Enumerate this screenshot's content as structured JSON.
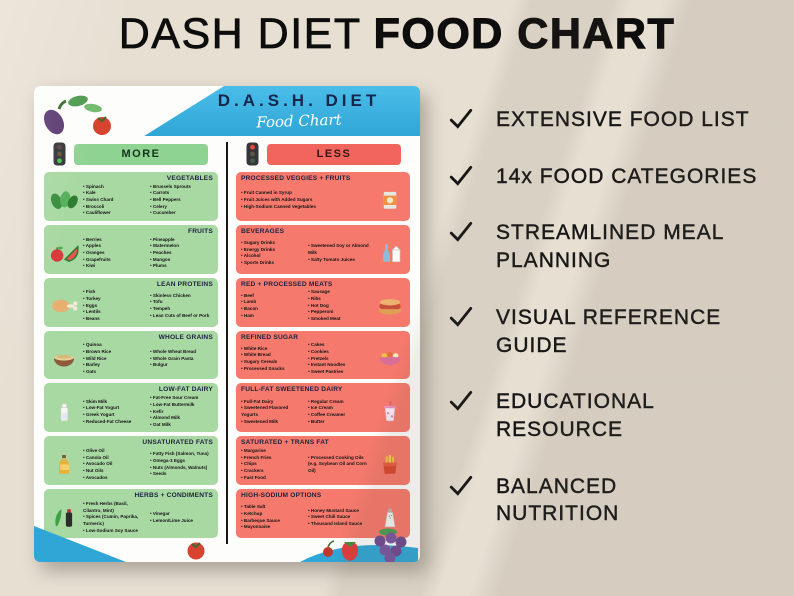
{
  "title": {
    "light": "DASH DIET",
    "bold": "FOOD CHART"
  },
  "poster": {
    "title": "D.A.S.H. DIET",
    "subtitle": "Food Chart",
    "more_label": "MORE",
    "less_label": "LESS",
    "rows": [
      {
        "more": {
          "title": "VEGETABLES",
          "icon": "leafy-greens-icon",
          "lists": [
            [
              "Spinach",
              "Kale",
              "Swiss Chard",
              "Broccoli",
              "Cauliflower"
            ],
            [
              "Brussels Sprouts",
              "Carrots",
              "Bell Peppers",
              "Celery",
              "Cucumber"
            ]
          ]
        },
        "less": {
          "title": "PROCESSED VEGGIES + FRUITS",
          "icon": "canned-fruit-icon",
          "lists": [
            [
              "Fruit Canned in Syrup",
              "Fruit Juices with Added Sugars",
              "High-Sodium Canned Vegetables"
            ]
          ]
        }
      },
      {
        "more": {
          "title": "FRUITS",
          "icon": "fruits-icon",
          "lists": [
            [
              "Berries",
              "Apples",
              "Oranges",
              "Grapefruits",
              "Kiwi"
            ],
            [
              "Pineapple",
              "Watermelon",
              "Peaches",
              "Mangos",
              "Plums"
            ]
          ]
        },
        "less": {
          "title": "BEVERAGES",
          "icon": "beverages-icon",
          "lists": [
            [
              "Sugary Drinks",
              "Energy Drinks",
              "Alcohol",
              "Sports Drinks"
            ],
            [
              "Sweetened Soy or Almond Milk",
              "Salty Tomato Juices"
            ]
          ]
        }
      },
      {
        "more": {
          "title": "LEAN PROTEINS",
          "icon": "poultry-icon",
          "lists": [
            [
              "Fish",
              "Turkey",
              "Eggs",
              "Lentils",
              "Beans"
            ],
            [
              "Skinless Chicken",
              "Tofu",
              "Tempeh",
              "Lean Cuts of Beef or Pork"
            ]
          ]
        },
        "less": {
          "title": "RED + PROCESSED MEATS",
          "icon": "meats-icon",
          "lists": [
            [
              "Beef",
              "Lamb",
              "Bacon",
              "Ham"
            ],
            [
              "Sausage",
              "Ribs",
              "Hot Dog",
              "Pepperoni",
              "Smoked Meat"
            ]
          ]
        }
      },
      {
        "more": {
          "title": "WHOLE GRAINS",
          "icon": "grains-icon",
          "lists": [
            [
              "Quinoa",
              "Brown Rice",
              "Wild Rice",
              "Barley",
              "Oats"
            ],
            [
              "Whole Wheat Bread",
              "Whole Grain Pasta",
              "Bulgur"
            ]
          ]
        },
        "less": {
          "title": "REFINED SUGAR",
          "icon": "sweets-icon",
          "lists": [
            [
              "White Rice",
              "White Bread",
              "Sugary Cereals",
              "Processed Snacks"
            ],
            [
              "Cakes",
              "Cookies",
              "Pretzels",
              "Instant Noodles",
              "Sweet Pastries"
            ]
          ]
        }
      },
      {
        "more": {
          "title": "LOW-FAT DAIRY",
          "icon": "milk-icon",
          "lists": [
            [
              "Skim Milk",
              "Low-Fat Yogurt",
              "Greek Yogurt",
              "Reduced-Fat Cheese"
            ],
            [
              "Fat-Free Sour Cream",
              "Low-Fat Buttermilk",
              "Kefir",
              "Almond Milk",
              "Oat Milk"
            ]
          ]
        },
        "less": {
          "title": "FULL-FAT SWEETENED DAIRY",
          "icon": "sweet-dairy-icon",
          "lists": [
            [
              "Full-Fat Dairy",
              "Sweetened Flavored Yogurts",
              "Sweetened Milk"
            ],
            [
              "Regular Cream",
              "Ice Cream",
              "Coffee Creamer",
              "Butter"
            ]
          ]
        }
      },
      {
        "more": {
          "title": "UNSATURATED FATS",
          "icon": "oil-bottle-icon",
          "lists": [
            [
              "Olive Oil",
              "Canola Oil",
              "Avocado Oil",
              "Nut Oils",
              "Avocados"
            ],
            [
              "Fatty Fish (Salmon, Tuna)",
              "Omega-3 Eggs",
              "Nuts (Almonds, Walnuts)",
              "Seeds"
            ]
          ]
        },
        "less": {
          "title": "SATURATED + TRANS FAT",
          "icon": "fries-icon",
          "lists": [
            [
              "Margarine",
              "French Fries",
              "Chips",
              "Crackers",
              "Fast Food"
            ],
            [
              "Processed Cooking Oils (e.g. Soybean Oil and Corn Oil)"
            ]
          ]
        }
      },
      {
        "more": {
          "title": "HERBS + CONDIMENTS",
          "icon": "herbs-icon",
          "lists": [
            [
              "Fresh Herbs (Basil, Cilantro, Mint)",
              "Spices (Cumin, Paprika, Turmeric)",
              "Low-Sodium Soy Sauce"
            ],
            [
              "Vinegar",
              "Lemon/Lime Juice"
            ]
          ]
        },
        "less": {
          "title": "HIGH-SODIUM OPTIONS",
          "icon": "salt-shaker-icon",
          "lists": [
            [
              "Table Salt",
              "Ketchup",
              "Barbeque Sauce",
              "Mayonnaise"
            ],
            [
              "Honey Mustard Sauce",
              "Sweet Chili Sauce",
              "Thousand Island Sauce"
            ]
          ]
        }
      }
    ]
  },
  "features": [
    "EXTENSIVE FOOD LIST",
    "14x FOOD CATEGORIES",
    "STREAMLINED MEAL\nPLANNING",
    "VISUAL REFERENCE\nGUIDE",
    "EDUCATIONAL\nRESOURCE",
    "BALANCED\nNUTRITION"
  ],
  "colors": {
    "bg": "#e7dfd2",
    "header_blue": "#2fa6d6",
    "more_card": "#a9d9a3",
    "less_card": "#f5796c",
    "pill_green": "#8fd392",
    "pill_red": "#f2655e"
  }
}
